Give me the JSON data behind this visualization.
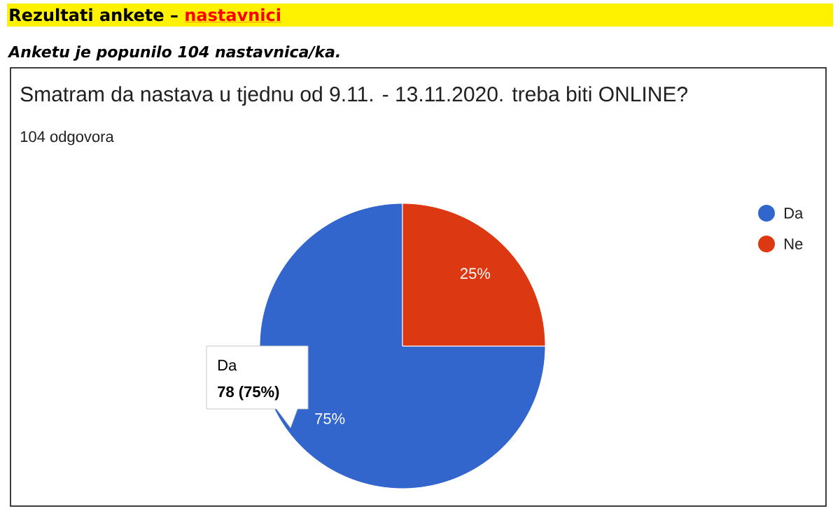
{
  "chart_data": {
    "type": "pie",
    "title": "Smatram da nastava u tjednu od 9.11. - 13.11.2020. treba biti ONLINE?",
    "subtitle": "104 odgovora",
    "categories": [
      "Da",
      "Ne"
    ],
    "values": [
      75,
      25
    ],
    "colors": [
      "#3366cc",
      "#dc3912"
    ],
    "value_labels": [
      "75%",
      "25%"
    ],
    "legend": "top right",
    "annotations": [
      "Rezultati ankete –",
      "nastavnici",
      "Anketu je popunilo 104 nastavnica/ka.",
      "Da",
      "78 (75%)"
    ]
  }
}
